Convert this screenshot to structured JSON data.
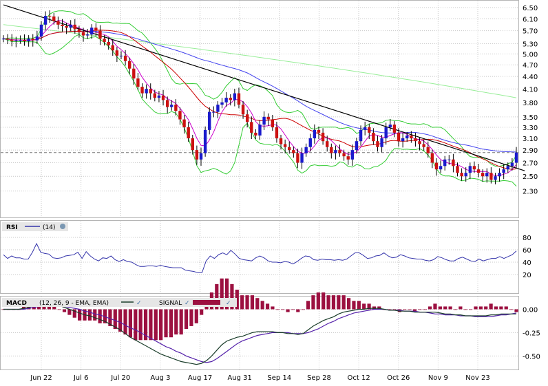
{
  "chart_data": [
    {
      "type": "candlestick",
      "panel": "price",
      "y_ticks": [
        "6.50",
        "6.10",
        "5.70",
        "5.30",
        "5.00",
        "4.70",
        "4.40",
        "4.10",
        "3.80",
        "3.50",
        "3.30",
        "3.10",
        "2.90",
        "2.70",
        "2.50",
        "2.30"
      ],
      "ylim": [
        2.1,
        6.55
      ],
      "y_scale": "log",
      "last_price_line": 2.86,
      "x_ticks": [
        "Jun 22",
        "Jul 6",
        "Jul 20",
        "Aug 3",
        "Aug 17",
        "Aug 31",
        "Sep 14",
        "Sep 28",
        "Oct 12",
        "Oct 26",
        "Nov 9",
        "Nov 23"
      ],
      "closes": [
        5.45,
        5.42,
        5.38,
        5.4,
        5.41,
        5.37,
        5.45,
        5.4,
        5.52,
        5.9,
        6.2,
        6.18,
        6.02,
        5.9,
        5.85,
        5.8,
        5.9,
        5.75,
        5.65,
        5.55,
        5.58,
        5.8,
        5.7,
        5.45,
        5.35,
        5.25,
        5.1,
        4.95,
        4.95,
        4.8,
        4.6,
        4.35,
        4.15,
        4.0,
        4.1,
        4.0,
        3.9,
        3.95,
        3.85,
        3.7,
        3.75,
        3.62,
        3.45,
        3.3,
        3.1,
        2.9,
        2.75,
        2.85,
        3.25,
        3.6,
        3.6,
        3.75,
        3.8,
        3.9,
        3.85,
        4.0,
        3.75,
        3.55,
        3.4,
        3.2,
        3.15,
        3.35,
        3.5,
        3.45,
        3.3,
        3.1,
        3.0,
        2.95,
        2.9,
        2.85,
        2.7,
        2.85,
        2.95,
        3.1,
        3.25,
        3.2,
        3.05,
        2.95,
        2.85,
        2.9,
        2.85,
        2.8,
        2.75,
        2.9,
        3.05,
        3.25,
        3.3,
        3.2,
        3.05,
        2.95,
        3.1,
        3.3,
        3.35,
        3.2,
        3.05,
        3.1,
        3.15,
        3.1,
        3.05,
        3.0,
        2.95,
        2.85,
        2.7,
        2.6,
        2.65,
        2.75,
        2.75,
        2.65,
        2.55,
        2.5,
        2.55,
        2.65,
        2.6,
        2.55,
        2.5,
        2.55,
        2.45,
        2.5,
        2.55,
        2.6,
        2.65,
        2.7,
        2.86
      ],
      "series": [
        {
          "name": "",
          "color": "#4444ee"
        },
        {
          "name": "",
          "color": "#cc0000"
        },
        {
          "name": "",
          "color": "#cc00cc"
        },
        {
          "name": "",
          "color": "#33cc33"
        },
        {
          "name": "",
          "color": "#99ee99"
        }
      ],
      "trendline": {
        "from": {
          "i": 0,
          "y": 6.6
        },
        "to": {
          "i": 124,
          "y": 2.58
        },
        "color": "#000000"
      }
    },
    {
      "type": "line",
      "panel": "RSI",
      "title": "RSI",
      "param_label": "(14)",
      "y_ticks": [
        "80",
        "60",
        "40",
        "20"
      ],
      "ylim": [
        0,
        100
      ],
      "color": "#3333aa",
      "values": [
        52,
        46,
        50,
        47,
        47,
        45,
        45,
        56,
        70,
        56,
        54,
        53,
        47,
        46,
        47,
        50,
        51,
        52,
        56,
        46,
        57,
        50,
        45,
        42,
        47,
        46,
        50,
        44,
        41,
        44,
        41,
        40,
        36,
        33,
        33,
        34,
        34,
        33,
        35,
        33,
        32,
        31,
        31,
        31,
        27,
        26,
        25,
        23,
        23,
        42,
        50,
        46,
        52,
        55,
        52,
        59,
        53,
        46,
        44,
        43,
        42,
        47,
        50,
        47,
        42,
        40,
        40,
        39,
        41,
        40,
        37,
        41,
        46,
        50,
        49,
        44,
        43,
        45,
        44,
        44,
        43,
        44,
        43,
        45,
        50,
        55,
        55,
        51,
        46,
        47,
        50,
        51,
        55,
        50,
        47,
        48,
        52,
        50,
        47,
        46,
        45,
        45,
        43,
        42,
        44,
        49,
        47,
        44,
        42,
        42,
        46,
        48,
        45,
        42,
        41,
        45,
        42,
        44,
        46,
        46,
        49,
        46,
        49,
        52,
        58
      ]
    },
    {
      "type": "bar+line",
      "panel": "MACD",
      "title": "MACD",
      "param_label": "(12, 26, 9 - EMA, EMA)",
      "legend": [
        "SIGNAL"
      ],
      "y_ticks": [
        "0.00",
        "-0.25",
        "-0.50"
      ],
      "ylim": [
        -0.63,
        0.07
      ],
      "colors": {
        "macd": "#1a3d2a",
        "signal": "#5522aa",
        "hist": "#9c1040"
      },
      "macd": [
        0,
        0,
        0,
        0,
        0.01,
        0.02,
        0.04,
        0.05,
        0.06,
        0.06,
        0.05,
        0.04,
        0.02,
        0,
        -0.02,
        -0.04,
        -0.06,
        -0.07,
        -0.09,
        -0.11,
        -0.13,
        -0.16,
        -0.19,
        -0.22,
        -0.26,
        -0.3,
        -0.33,
        -0.36,
        -0.39,
        -0.42,
        -0.45,
        -0.48,
        -0.5,
        -0.52,
        -0.54,
        -0.56,
        -0.57,
        -0.58,
        -0.59,
        -0.58,
        -0.55,
        -0.5,
        -0.44,
        -0.38,
        -0.34,
        -0.32,
        -0.3,
        -0.29,
        -0.27,
        -0.25,
        -0.24,
        -0.24,
        -0.24,
        -0.24,
        -0.25,
        -0.25,
        -0.26,
        -0.26,
        -0.27,
        -0.26,
        -0.22,
        -0.18,
        -0.15,
        -0.12,
        -0.1,
        -0.08,
        -0.05,
        -0.03,
        -0.02,
        -0.01,
        0,
        0,
        0.01,
        0.01,
        0.01,
        0,
        -0.01,
        -0.01,
        -0.02,
        -0.02,
        -0.02,
        -0.03,
        -0.03,
        -0.03,
        -0.03,
        -0.03,
        -0.04,
        -0.05,
        -0.05,
        -0.06,
        -0.06,
        -0.07,
        -0.07,
        -0.07,
        -0.07,
        -0.07,
        -0.06,
        -0.06,
        -0.05,
        -0.05,
        -0.05,
        -0.05
      ],
      "signal": [
        0,
        0,
        0,
        0,
        0,
        0.01,
        0.02,
        0.03,
        0.03,
        0.04,
        0.04,
        0.04,
        0.03,
        0.02,
        0.01,
        0,
        -0.02,
        -0.03,
        -0.05,
        -0.06,
        -0.08,
        -0.1,
        -0.12,
        -0.14,
        -0.17,
        -0.2,
        -0.22,
        -0.25,
        -0.28,
        -0.31,
        -0.34,
        -0.37,
        -0.4,
        -0.42,
        -0.45,
        -0.47,
        -0.5,
        -0.52,
        -0.54,
        -0.56,
        -0.57,
        -0.56,
        -0.53,
        -0.49,
        -0.45,
        -0.41,
        -0.37,
        -0.34,
        -0.32,
        -0.3,
        -0.28,
        -0.27,
        -0.26,
        -0.25,
        -0.25,
        -0.25,
        -0.25,
        -0.26,
        -0.26,
        -0.26,
        -0.25,
        -0.23,
        -0.21,
        -0.18,
        -0.15,
        -0.13,
        -0.1,
        -0.08,
        -0.06,
        -0.04,
        -0.03,
        -0.02,
        -0.01,
        0,
        0,
        0,
        -0.01,
        -0.01,
        -0.01,
        -0.02,
        -0.02,
        -0.02,
        -0.03,
        -0.03,
        -0.04,
        -0.05,
        -0.05,
        -0.06,
        -0.06,
        -0.06,
        -0.07,
        -0.07,
        -0.07,
        -0.08,
        -0.08,
        -0.08,
        -0.08,
        -0.07,
        -0.06,
        -0.06,
        -0.05,
        -0.04
      ]
    }
  ]
}
